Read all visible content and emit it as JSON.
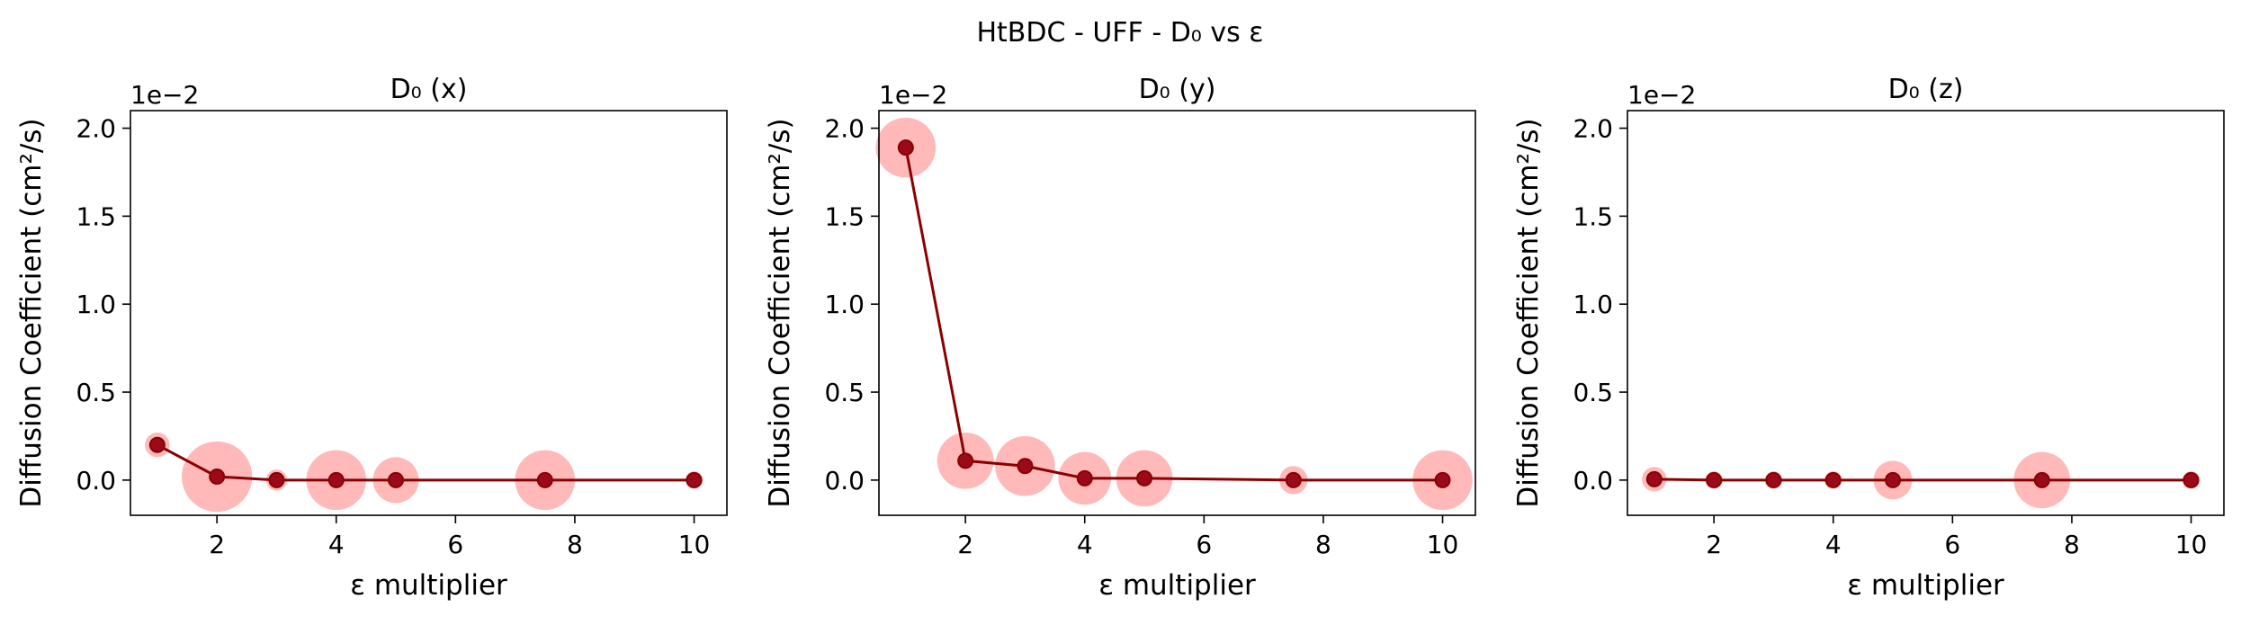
{
  "suptitle": "HtBDC - UFF - D₀ vs ε",
  "colors": {
    "line": "#8b0000",
    "marker_face": "#9b0a1a",
    "bubble": "#ff7f7f",
    "axis": "#000000"
  },
  "chart_data": [
    {
      "type": "line",
      "title": "D₀ (x)",
      "xlabel": "ε multiplier",
      "ylabel": "Diffusion Coefficient (cm²/s)",
      "y_offset_text": "1e−2",
      "xlim": [
        0.55,
        10.55
      ],
      "ylim": [
        -0.2,
        2.1
      ],
      "xticks": [
        2,
        4,
        6,
        8,
        10
      ],
      "xtick_labels": [
        "2",
        "4",
        "6",
        "8",
        "10"
      ],
      "yticks": [
        0.0,
        0.5,
        1.0,
        1.5,
        2.0
      ],
      "ytick_labels": [
        "0.0",
        "0.5",
        "1.0",
        "1.5",
        "2.0"
      ],
      "grid": false,
      "x": [
        1,
        2,
        3,
        4,
        5,
        7.5,
        10
      ],
      "values": [
        0.2,
        0.02,
        0.0,
        0.0,
        0.0,
        0.0,
        0.0
      ],
      "uncertainty": [
        0.07,
        0.2,
        0.06,
        0.17,
        0.13,
        0.17,
        0.05
      ]
    },
    {
      "type": "line",
      "title": "D₀ (y)",
      "xlabel": "ε multiplier",
      "ylabel": "Diffusion Coefficient (cm²/s)",
      "y_offset_text": "1e−2",
      "xlim": [
        0.55,
        10.55
      ],
      "ylim": [
        -0.2,
        2.1
      ],
      "xticks": [
        2,
        4,
        6,
        8,
        10
      ],
      "xtick_labels": [
        "2",
        "4",
        "6",
        "8",
        "10"
      ],
      "yticks": [
        0.0,
        0.5,
        1.0,
        1.5,
        2.0
      ],
      "ytick_labels": [
        "0.0",
        "0.5",
        "1.0",
        "1.5",
        "2.0"
      ],
      "grid": false,
      "x": [
        1,
        2,
        3,
        4,
        5,
        7.5,
        10
      ],
      "values": [
        1.89,
        0.11,
        0.08,
        0.01,
        0.01,
        0.0,
        0.0
      ],
      "uncertainty": [
        0.17,
        0.16,
        0.17,
        0.15,
        0.16,
        0.08,
        0.17
      ]
    },
    {
      "type": "line",
      "title": "D₀ (z)",
      "xlabel": "ε multiplier",
      "ylabel": "Diffusion Coefficient (cm²/s)",
      "y_offset_text": "1e−2",
      "xlim": [
        0.55,
        10.55
      ],
      "ylim": [
        -0.2,
        2.1
      ],
      "xticks": [
        2,
        4,
        6,
        8,
        10
      ],
      "xtick_labels": [
        "2",
        "4",
        "6",
        "8",
        "10"
      ],
      "yticks": [
        0.0,
        0.5,
        1.0,
        1.5,
        2.0
      ],
      "ytick_labels": [
        "0.0",
        "0.5",
        "1.0",
        "1.5",
        "2.0"
      ],
      "grid": false,
      "x": [
        1,
        2,
        3,
        4,
        5,
        7.5,
        10
      ],
      "values": [
        0.005,
        0.0,
        0.0,
        0.0,
        0.0,
        0.0,
        0.0
      ],
      "uncertainty": [
        0.07,
        0.05,
        0.05,
        0.05,
        0.11,
        0.16,
        0.05
      ]
    }
  ]
}
